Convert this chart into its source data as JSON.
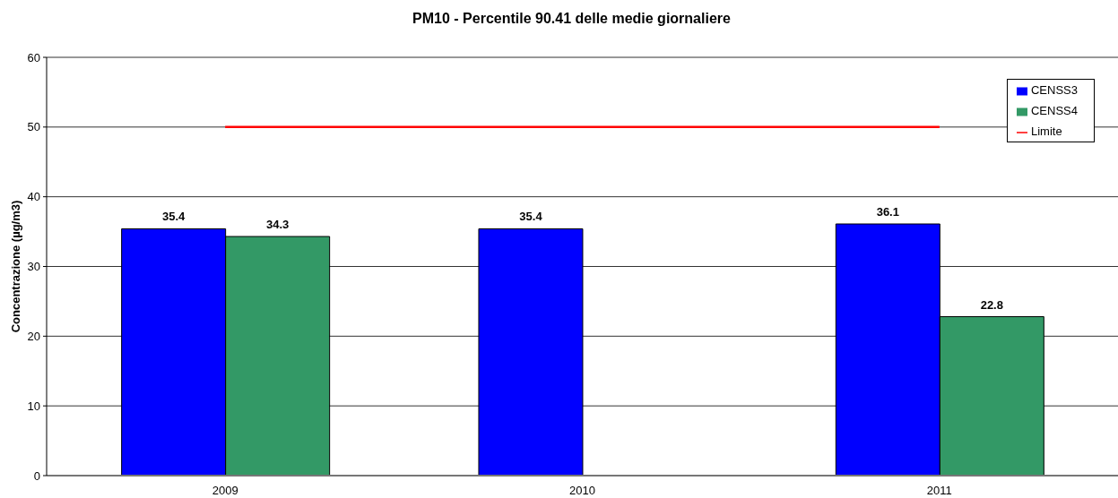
{
  "chart_data": {
    "type": "bar",
    "title": "PM10 - Percentile 90.41 delle medie giornaliere",
    "ylabel": "Concentrazione (µg/m3)",
    "categories": [
      "2009",
      "2010",
      "2011"
    ],
    "series": [
      {
        "name": "CENSS3",
        "color": "#0000ff",
        "values": [
          35.4,
          35.4,
          36.1
        ],
        "value_labels": [
          "35.4",
          "35.4",
          "36.1"
        ]
      },
      {
        "name": "CENSS4",
        "color": "#339966",
        "values": [
          34.3,
          null,
          22.8
        ],
        "value_labels": [
          "34.3",
          null,
          "22.8"
        ]
      },
      {
        "name": "Limite",
        "type": "line",
        "color": "#ff0000",
        "values": [
          50,
          50,
          50
        ]
      }
    ],
    "ylim": [
      0,
      60
    ],
    "yticks": [
      0,
      10,
      20,
      30,
      40,
      50,
      60
    ],
    "grid": "y",
    "legend": "top right"
  }
}
